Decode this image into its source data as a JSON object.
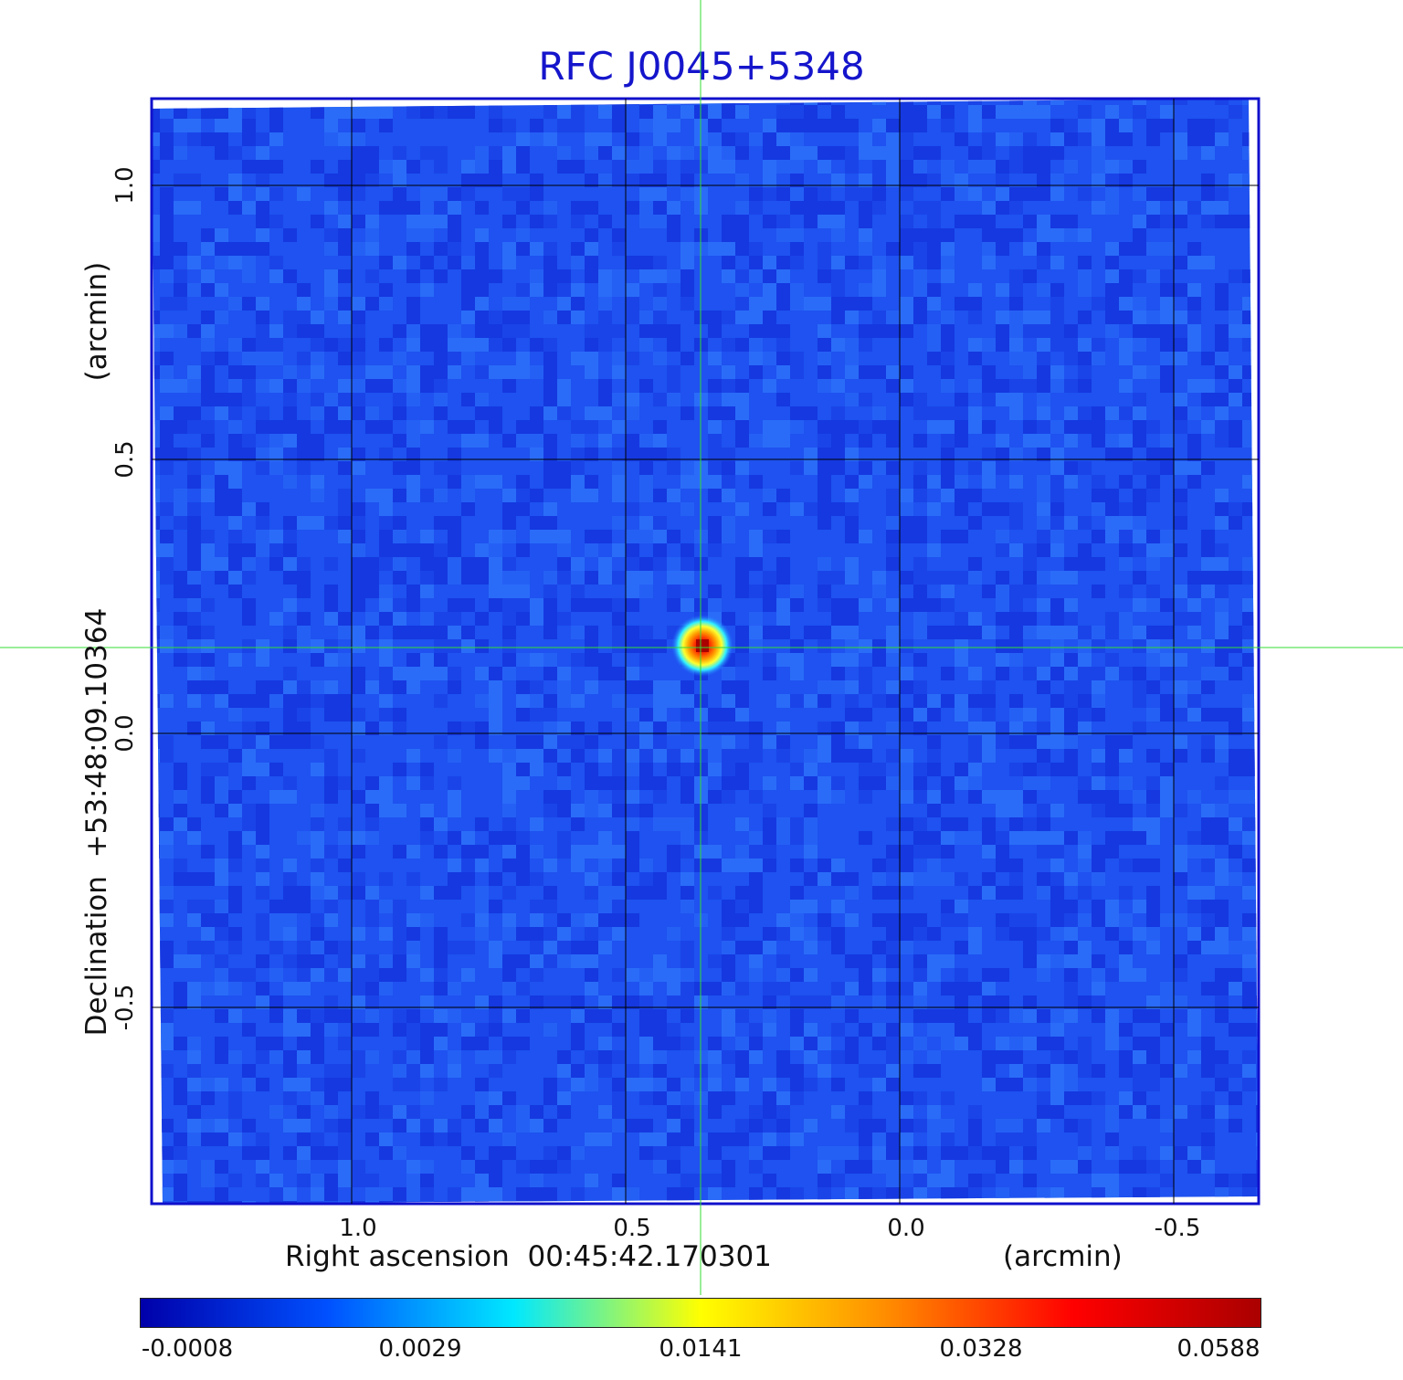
{
  "title": "RFC J0045+5348",
  "axes": {
    "x_label": "Right ascension  00:45:42.170301",
    "x_unit": "(arcmin)",
    "y_label": "Declination  +53:48:09.10364",
    "y_unit": "(arcmin)",
    "x_ticks": [
      "1.0",
      "0.5",
      "0.0",
      "-0.5"
    ],
    "y_ticks": [
      "1.0",
      "0.5",
      "0.0",
      "-0.5"
    ]
  },
  "colorbar": {
    "labels": [
      "-0.0008",
      "0.0029",
      "0.0141",
      "0.0328",
      "0.0588"
    ],
    "colors": [
      "#0000aa",
      "#0050ff",
      "#00e8ff",
      "#ffff00",
      "#ff8c00",
      "#ff0000",
      "#aa0000"
    ]
  },
  "colors": {
    "frame": "#1010cc",
    "crosshair": "#33dd33",
    "grid": "#000000",
    "sky_background": "#1f52f0"
  },
  "source": {
    "peak_value": 0.0588,
    "ra_offset_arcmin": 0.36,
    "dec_offset_arcmin": 0.16
  }
}
